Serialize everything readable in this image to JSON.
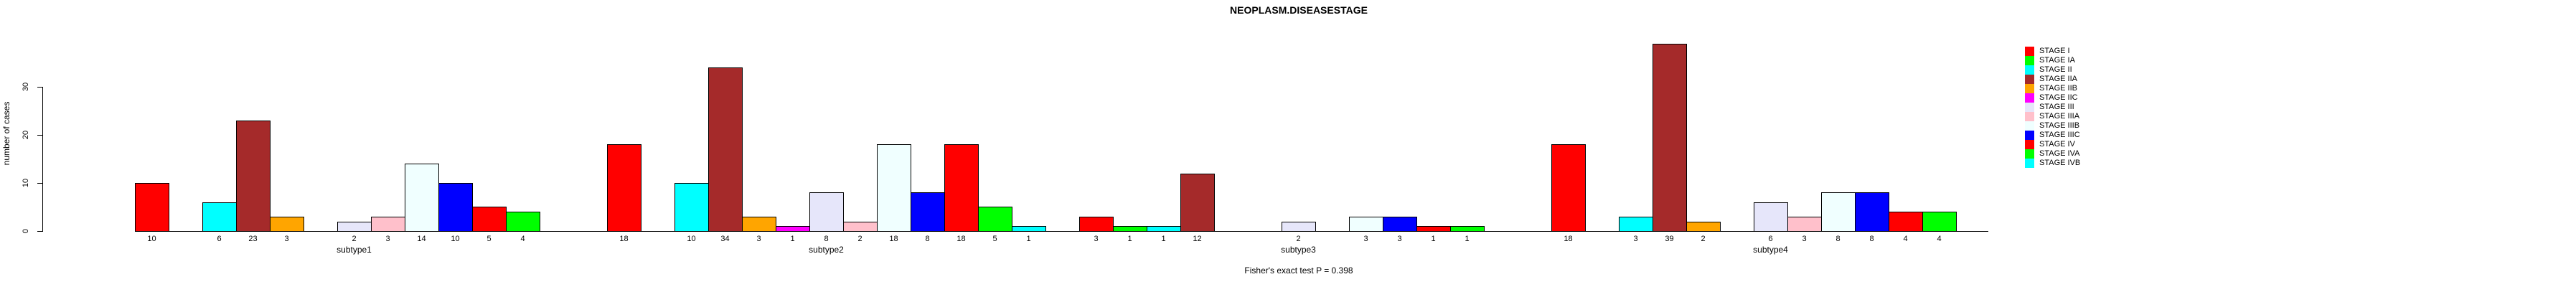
{
  "title": "NEOPLASM.DISEASESTAGE",
  "footer": "Fisher's exact test P = 0.398",
  "y_axis": {
    "label": "number of cases",
    "ticks": [
      0,
      10,
      20,
      30
    ]
  },
  "legend": [
    {
      "label": "STAGE I",
      "color": "#FF0000"
    },
    {
      "label": "STAGE IA",
      "color": "#00FF00"
    },
    {
      "label": "STAGE II",
      "color": "#00FFFF"
    },
    {
      "label": "STAGE IIA",
      "color": "#A52A2A"
    },
    {
      "label": "STAGE IIB",
      "color": "#FFA500"
    },
    {
      "label": "STAGE IIC",
      "color": "#FF00FF"
    },
    {
      "label": "STAGE III",
      "color": "#E6E6FA"
    },
    {
      "label": "STAGE IIIA",
      "color": "#FFC0CB"
    },
    {
      "label": "STAGE IIIB",
      "color": "#F0FFFF"
    },
    {
      "label": "STAGE IIIC",
      "color": "#0000FF"
    },
    {
      "label": "STAGE IV",
      "color": "#FF0000"
    },
    {
      "label": "STAGE IVA",
      "color": "#00FF00"
    },
    {
      "label": "STAGE IVB",
      "color": "#00FFFF"
    }
  ],
  "chart_data": {
    "type": "bar",
    "title": "NEOPLASM.DISEASESTAGE",
    "xlabel": "",
    "ylabel": "number of cases",
    "ylim": [
      0,
      39
    ],
    "yticks": [
      0,
      10,
      20,
      30
    ],
    "grid": false,
    "legend_position": "right",
    "bar_value_labels": "shown under each nonzero bar",
    "categories": [
      "subtype1",
      "subtype2",
      "subtype3",
      "subtype4"
    ],
    "series": [
      {
        "name": "STAGE I",
        "color": "#FF0000",
        "values": [
          10,
          18,
          3,
          18
        ]
      },
      {
        "name": "STAGE IA",
        "color": "#00FF00",
        "values": [
          0,
          0,
          1,
          0
        ]
      },
      {
        "name": "STAGE II",
        "color": "#00FFFF",
        "values": [
          6,
          10,
          1,
          3
        ]
      },
      {
        "name": "STAGE IIA",
        "color": "#A52A2A",
        "values": [
          23,
          34,
          12,
          39
        ]
      },
      {
        "name": "STAGE IIB",
        "color": "#FFA500",
        "values": [
          3,
          3,
          0,
          2
        ]
      },
      {
        "name": "STAGE IIC",
        "color": "#FF00FF",
        "values": [
          0,
          1,
          0,
          0
        ]
      },
      {
        "name": "STAGE III",
        "color": "#E6E6FA",
        "values": [
          2,
          8,
          2,
          6
        ]
      },
      {
        "name": "STAGE IIIA",
        "color": "#FFC0CB",
        "values": [
          3,
          2,
          0,
          3
        ]
      },
      {
        "name": "STAGE IIIB",
        "color": "#F0FFFF",
        "values": [
          14,
          18,
          3,
          8
        ]
      },
      {
        "name": "STAGE IIIC",
        "color": "#0000FF",
        "values": [
          10,
          8,
          3,
          8
        ]
      },
      {
        "name": "STAGE IV",
        "color": "#FF0000",
        "values": [
          5,
          18,
          1,
          4
        ]
      },
      {
        "name": "STAGE IVA",
        "color": "#00FF00",
        "values": [
          4,
          5,
          1,
          4
        ]
      },
      {
        "name": "STAGE IVB",
        "color": "#00FFFF",
        "values": [
          0,
          1,
          0,
          0
        ]
      }
    ]
  }
}
